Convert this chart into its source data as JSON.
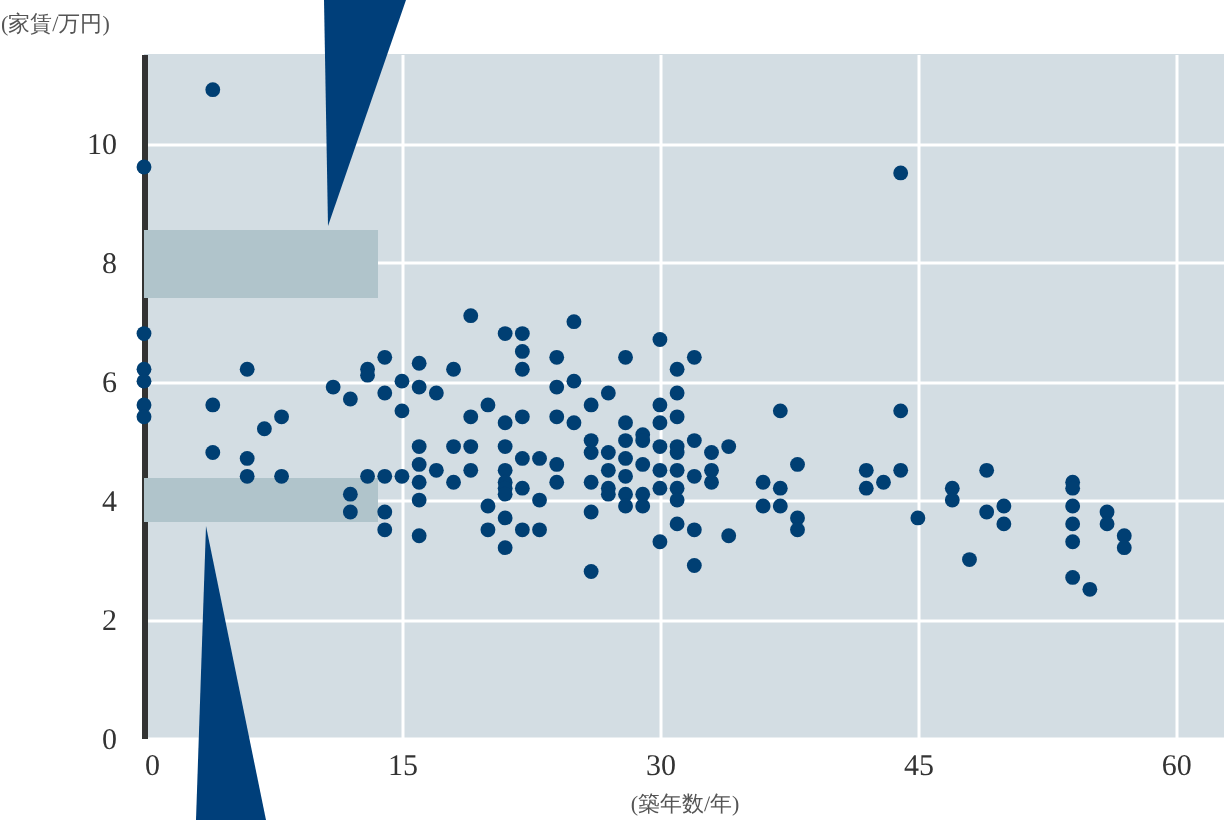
{
  "chart_data": {
    "type": "scatter",
    "xlabel": "(築年数/年)",
    "ylabel": "(家賃/万円)",
    "x": [
      4,
      0,
      0,
      0,
      0,
      0,
      0,
      6,
      4,
      4,
      6,
      6,
      8,
      7,
      8,
      11,
      12,
      12,
      12,
      13,
      13,
      13,
      14,
      14,
      14,
      14,
      14,
      15,
      15,
      15,
      16,
      16,
      16,
      16,
      16,
      16,
      16,
      17,
      17,
      18,
      18,
      18,
      19,
      19,
      19,
      19,
      20,
      20,
      20,
      21,
      21,
      21,
      21,
      21,
      21,
      21,
      21,
      21,
      22,
      22,
      22,
      22,
      22,
      22,
      22,
      23,
      23,
      23,
      24,
      24,
      24,
      24,
      24,
      25,
      25,
      25,
      26,
      26,
      26,
      26,
      26,
      26,
      27,
      27,
      27,
      27,
      27,
      28,
      28,
      28,
      28,
      28,
      28,
      28,
      29,
      29,
      29,
      29,
      29,
      30,
      30,
      30,
      30,
      30,
      30,
      30,
      31,
      31,
      31,
      31,
      31,
      31,
      31,
      31,
      31,
      32,
      32,
      32,
      32,
      32,
      33,
      33,
      33,
      34,
      34,
      36,
      36,
      37,
      37,
      37,
      38,
      38,
      38,
      42,
      42,
      43,
      44,
      44,
      44,
      45,
      47,
      47,
      48,
      49,
      49,
      50,
      50,
      54,
      54,
      54,
      54,
      54,
      54,
      55,
      56,
      56,
      57,
      57
    ],
    "series": [
      {
        "color": "#003f73",
        "values": [
          10.9,
          9.6,
          6.8,
          6.2,
          6.0,
          5.6,
          5.4,
          6.2,
          5.6,
          4.8,
          4.7,
          4.4,
          5.4,
          5.2,
          4.4,
          5.9,
          5.7,
          4.1,
          3.8,
          6.2,
          6.1,
          4.4,
          6.4,
          5.8,
          4.4,
          3.8,
          3.5,
          6.0,
          5.5,
          4.4,
          6.3,
          5.9,
          4.9,
          4.6,
          4.3,
          4.0,
          3.4,
          5.8,
          4.5,
          6.2,
          4.9,
          4.3,
          7.1,
          5.4,
          4.9,
          4.5,
          5.6,
          3.9,
          3.5,
          6.8,
          5.3,
          4.9,
          4.5,
          4.3,
          4.2,
          4.1,
          3.7,
          3.2,
          6.8,
          6.5,
          6.2,
          5.4,
          4.7,
          4.2,
          3.5,
          4.7,
          4.0,
          3.5,
          6.4,
          5.9,
          5.4,
          4.6,
          4.3,
          7.0,
          6.0,
          5.3,
          5.6,
          5.0,
          4.8,
          4.3,
          3.8,
          2.8,
          5.8,
          4.8,
          4.5,
          4.2,
          4.1,
          6.4,
          5.3,
          5.0,
          4.7,
          4.4,
          4.1,
          3.9,
          5.1,
          5.0,
          4.6,
          4.1,
          3.9,
          6.7,
          5.6,
          5.3,
          4.9,
          4.5,
          4.2,
          3.3,
          6.2,
          5.8,
          5.4,
          4.9,
          4.8,
          4.5,
          4.2,
          4.0,
          3.6,
          6.4,
          5.0,
          4.4,
          3.5,
          2.9,
          4.8,
          4.5,
          4.3,
          4.9,
          3.4,
          4.3,
          3.9,
          5.5,
          4.2,
          3.9,
          4.6,
          3.7,
          3.5,
          4.5,
          4.2,
          4.3,
          9.5,
          5.5,
          4.5,
          3.7,
          4.2,
          4.0,
          3.0,
          4.5,
          3.8,
          3.9,
          3.6,
          4.3,
          4.2,
          3.9,
          3.6,
          3.3,
          2.7,
          2.5,
          3.8,
          3.6,
          3.4,
          3.2
        ]
      }
    ],
    "xlim": [
      0,
      62.8
    ],
    "ylim": [
      0,
      11.5
    ],
    "xticks": [
      0,
      15,
      30,
      45,
      60
    ],
    "yticks": [
      0,
      2,
      4,
      6,
      8,
      10
    ],
    "grid": true,
    "marker": "circle",
    "legend": false
  }
}
